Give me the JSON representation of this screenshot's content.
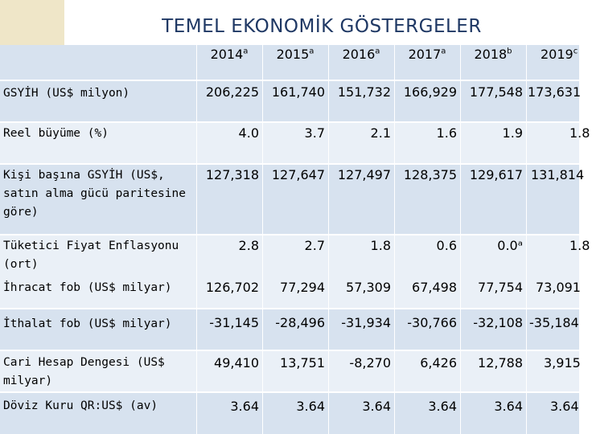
{
  "title": "TEMEL EKONOMİK GÖSTERGELER",
  "columns": [
    {
      "year": "2014",
      "note": "a"
    },
    {
      "year": "2015",
      "note": "a"
    },
    {
      "year": "2016",
      "note": "a"
    },
    {
      "year": "2017",
      "note": "a"
    },
    {
      "year": "2018",
      "note": "b"
    },
    {
      "year": "2019",
      "note": "c"
    }
  ],
  "rows": [
    {
      "label": "GSYİH (US$ milyon)",
      "values": [
        "206,225",
        "161,740",
        "151,732",
        "166,929",
        "177,548",
        "173,631"
      ]
    },
    {
      "label": "Reel büyüme (%)",
      "values": [
        "4.0",
        "3.7",
        "2.1",
        "1.6",
        "1.9",
        "1.8"
      ]
    },
    {
      "label": "Kişi başına GSYİH (US$, satın alma gücü paritesine göre)",
      "values": [
        "127,318",
        "127,647",
        "127,497",
        "128,375",
        "129,617",
        "131,814"
      ]
    },
    {
      "label": "Tüketici Fiyat Enflasyonu (ort)",
      "values": [
        "2.8",
        "2.7",
        "1.8",
        "0.6",
        "0.0ᵃ",
        "1.8"
      ]
    },
    {
      "label": "İhracat fob (US$ milyar)",
      "values": [
        "126,702",
        "77,294",
        "57,309",
        "67,498",
        "77,754",
        "73,091"
      ]
    },
    {
      "label": "İthalat fob (US$ milyar)",
      "values": [
        "-31,145",
        "-28,496",
        "-31,934",
        "-30,766",
        "-32,108",
        "-35,184"
      ]
    },
    {
      "label": "Cari Hesap Dengesi (US$ milyar)",
      "values": [
        "49,410",
        "13,751",
        "-8,270",
        "6,426",
        "12,788",
        "3,915"
      ]
    },
    {
      "label": "Döviz Kuru QR:US$ (av)",
      "values": [
        "3.64",
        "3.64",
        "3.64",
        "3.64",
        "3.64",
        "3.64"
      ]
    }
  ],
  "colors": {
    "title": "#1f3864",
    "band_dark": "#d7e2ef",
    "band_light": "#eaf0f7",
    "logo_bg": "#efe6c8"
  }
}
